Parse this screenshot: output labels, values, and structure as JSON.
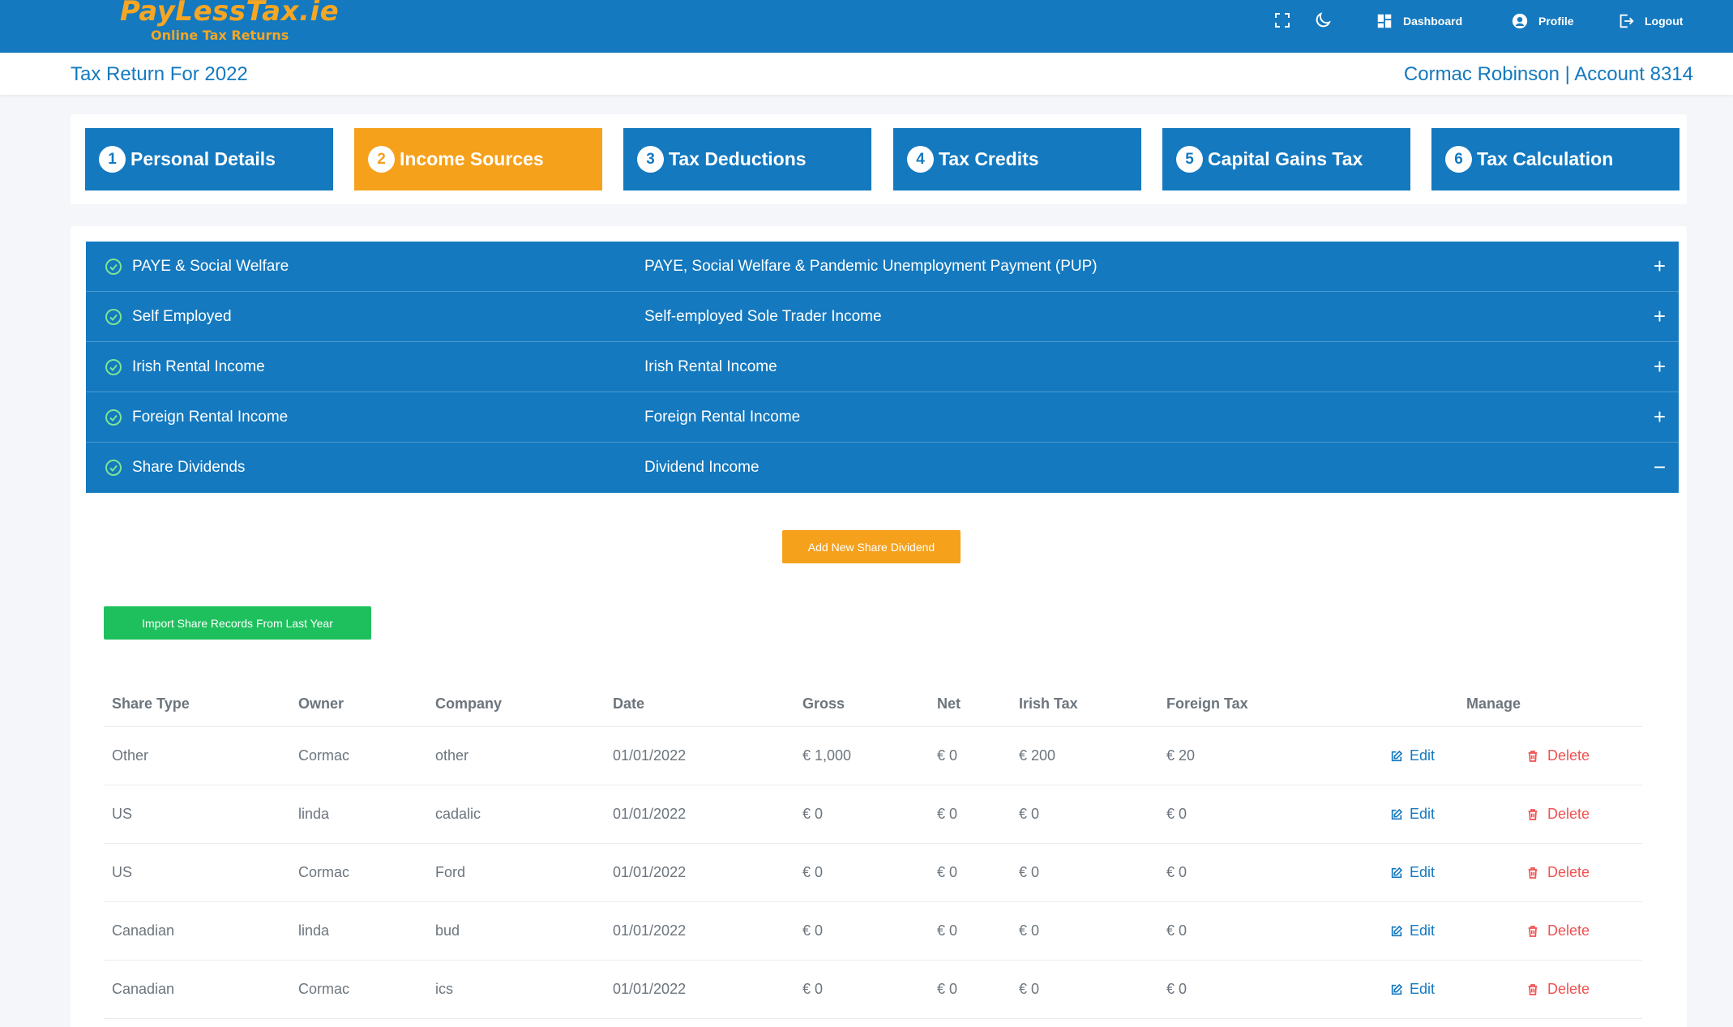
{
  "brand": {
    "name": "PayLessTax.ie",
    "tagline": "Online Tax Returns"
  },
  "topnav": {
    "fullscreen_icon": "fullscreen-icon",
    "theme_icon": "moon-icon",
    "dashboard": "Dashboard",
    "profile": "Profile",
    "logout": "Logout"
  },
  "subheader": {
    "title": "Tax Return For 2022",
    "account": "Cormac Robinson | Account 8314"
  },
  "steps": [
    {
      "num": "1",
      "label": "Personal Details"
    },
    {
      "num": "2",
      "label": "Income Sources"
    },
    {
      "num": "3",
      "label": "Tax Deductions"
    },
    {
      "num": "4",
      "label": "Tax Credits"
    },
    {
      "num": "5",
      "label": "Capital Gains Tax"
    },
    {
      "num": "6",
      "label": "Tax Calculation"
    }
  ],
  "active_step": 2,
  "accordion": [
    {
      "title": "PAYE & Social Welfare",
      "desc": "PAYE, Social Welfare & Pandemic Unemployment Payment (PUP)",
      "toggle": "+"
    },
    {
      "title": "Self Employed",
      "desc": "Self-employed Sole Trader Income",
      "toggle": "+"
    },
    {
      "title": "Irish Rental Income",
      "desc": "Irish Rental Income",
      "toggle": "+"
    },
    {
      "title": "Foreign Rental Income",
      "desc": "Foreign Rental Income",
      "toggle": "+"
    },
    {
      "title": "Share Dividends",
      "desc": "Dividend Income",
      "toggle": "−"
    }
  ],
  "buttons": {
    "add": "Add New Share Dividend",
    "import": "Import Share Records From Last Year"
  },
  "table": {
    "headers": [
      "Share Type",
      "Owner",
      "Company",
      "Date",
      "Gross",
      "Net",
      "Irish Tax",
      "Foreign Tax",
      "Manage"
    ],
    "edit_label": "Edit",
    "delete_label": "Delete",
    "rows": [
      [
        "Other",
        "Cormac",
        "other",
        "01/01/2022",
        "€ 1,000",
        "€ 0",
        "€ 200",
        "€ 20"
      ],
      [
        "US",
        "linda",
        "cadalic",
        "01/01/2022",
        "€ 0",
        "€ 0",
        "€ 0",
        "€ 0"
      ],
      [
        "US",
        "Cormac",
        "Ford",
        "01/01/2022",
        "€ 0",
        "€ 0",
        "€ 0",
        "€ 0"
      ],
      [
        "Canadian",
        "linda",
        "bud",
        "01/01/2022",
        "€ 0",
        "€ 0",
        "€ 0",
        "€ 0"
      ],
      [
        "Canadian",
        "Cormac",
        "ics",
        "01/01/2022",
        "€ 0",
        "€ 0",
        "€ 0",
        "€ 0"
      ]
    ]
  },
  "colors": {
    "primary": "#1479bf",
    "accent": "#f5a11c",
    "success": "#1ec05d",
    "danger": "#f05151"
  }
}
